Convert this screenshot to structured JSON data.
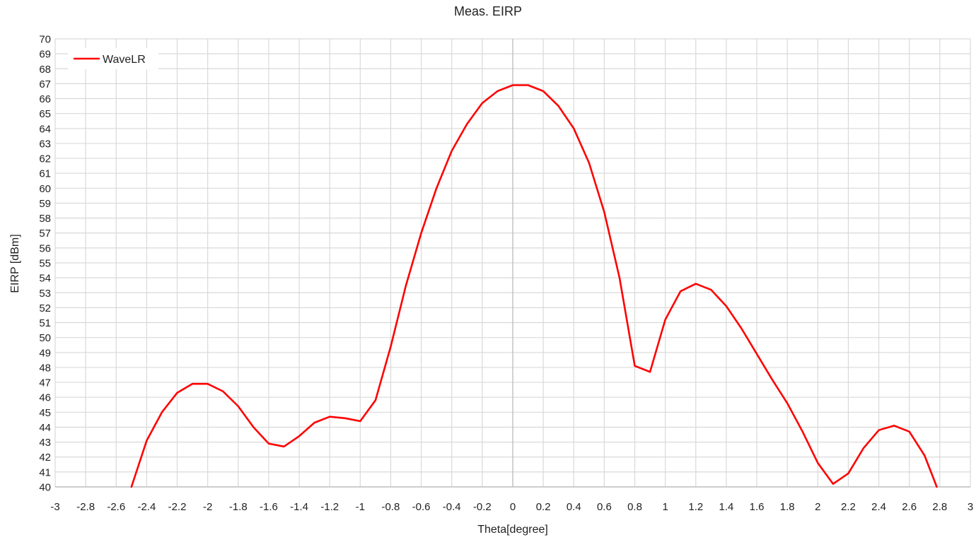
{
  "chart_data": {
    "type": "line",
    "title": "Meas. EIRP",
    "xlabel": "Theta[degree]",
    "ylabel": "EIRP [dBm]",
    "xlim": [
      -3,
      3
    ],
    "ylim": [
      40,
      70
    ],
    "x_ticks": [
      "-3",
      "-2.8",
      "-2.6",
      "-2.4",
      "-2.2",
      "-2",
      "-1.8",
      "-1.6",
      "-1.4",
      "-1.2",
      "-1",
      "-0.8",
      "-0.6",
      "-0.4",
      "-0.2",
      "0",
      "0.2",
      "0.4",
      "0.6",
      "0.8",
      "1",
      "1.2",
      "1.4",
      "1.6",
      "1.8",
      "2",
      "2.2",
      "2.4",
      "2.6",
      "2.8",
      "3"
    ],
    "y_ticks": [
      "40",
      "41",
      "42",
      "43",
      "44",
      "45",
      "46",
      "47",
      "48",
      "49",
      "50",
      "51",
      "52",
      "53",
      "54",
      "55",
      "56",
      "57",
      "58",
      "59",
      "60",
      "61",
      "62",
      "63",
      "64",
      "65",
      "66",
      "67",
      "68",
      "69",
      "70"
    ],
    "grid": true,
    "legend_position": "top-left",
    "series": [
      {
        "name": "WaveLR",
        "color": "#ff0000",
        "x": [
          -2.5,
          -2.4,
          -2.3,
          -2.2,
          -2.1,
          -2.0,
          -1.9,
          -1.8,
          -1.7,
          -1.6,
          -1.5,
          -1.4,
          -1.3,
          -1.2,
          -1.1,
          -1.0,
          -0.9,
          -0.8,
          -0.7,
          -0.6,
          -0.5,
          -0.4,
          -0.3,
          -0.2,
          -0.1,
          0.0,
          0.1,
          0.2,
          0.3,
          0.4,
          0.5,
          0.6,
          0.7,
          0.8,
          0.9,
          1.0,
          1.1,
          1.2,
          1.3,
          1.4,
          1.5,
          1.6,
          1.7,
          1.8,
          1.9,
          2.0,
          2.1,
          2.2,
          2.3,
          2.4,
          2.5,
          2.6,
          2.7,
          2.78
        ],
        "y": [
          40.0,
          43.1,
          45.0,
          46.3,
          46.9,
          46.9,
          46.4,
          45.4,
          44.0,
          42.9,
          42.7,
          43.4,
          44.3,
          44.7,
          44.6,
          44.4,
          45.8,
          49.4,
          53.5,
          57.0,
          60.0,
          62.5,
          64.3,
          65.7,
          66.5,
          66.9,
          66.9,
          66.5,
          65.5,
          64.0,
          61.7,
          58.4,
          54.0,
          48.1,
          47.7,
          51.2,
          53.1,
          53.6,
          53.2,
          52.1,
          50.6,
          48.9,
          47.2,
          45.6,
          43.7,
          41.6,
          40.2,
          40.9,
          42.6,
          43.8,
          44.1,
          43.7,
          42.1,
          40.0
        ]
      }
    ]
  }
}
